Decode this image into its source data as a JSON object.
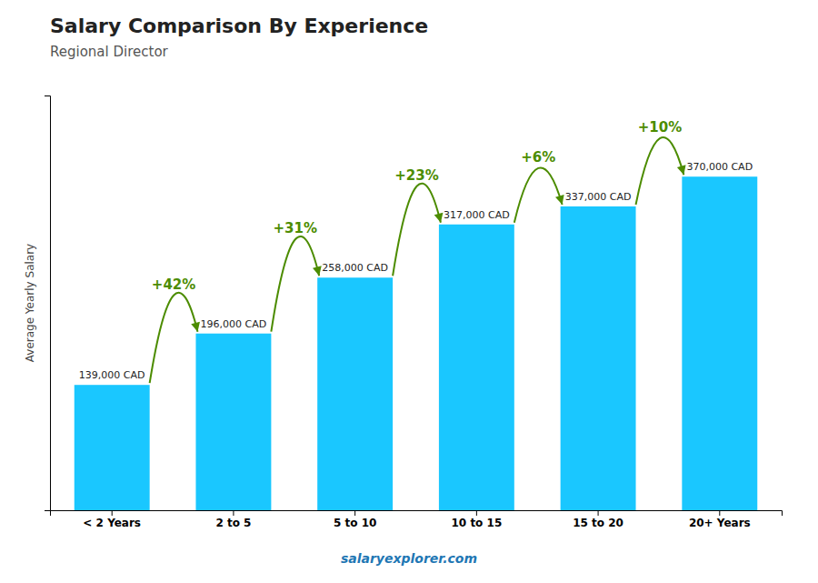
{
  "chart_data": {
    "type": "bar",
    "title": "Salary Comparison By Experience",
    "subtitle": "Regional Director",
    "y_label": "Average Yearly Salary",
    "categories": [
      "< 2 Years",
      "2 to 5",
      "5 to 10",
      "10 to 15",
      "15 to 20",
      "20+ Years"
    ],
    "values": [
      139000,
      196000,
      258000,
      317000,
      337000,
      370000
    ],
    "value_labels": [
      "139,000 CAD",
      "196,000 CAD",
      "258,000 CAD",
      "317,000 CAD",
      "337,000 CAD",
      "370,000 CAD"
    ],
    "data_labels": true,
    "color": "#1ac7ff",
    "ylim": [
      0,
      460000
    ],
    "tick_labels": "x",
    "grid": false,
    "annotations": [
      {
        "text": "+42%",
        "from": "< 2 Years",
        "to": "2 to 5"
      },
      {
        "text": "+31%",
        "from": "2 to 5",
        "to": "5 to 10"
      },
      {
        "text": "+23%",
        "from": "5 to 10",
        "to": "10 to 15"
      },
      {
        "text": "+6%",
        "from": "10 to 15",
        "to": "15 to 20"
      },
      {
        "text": "+10%",
        "from": "15 to 20",
        "to": "20+ Years"
      }
    ],
    "watermark": "salaryexplorer.com"
  }
}
